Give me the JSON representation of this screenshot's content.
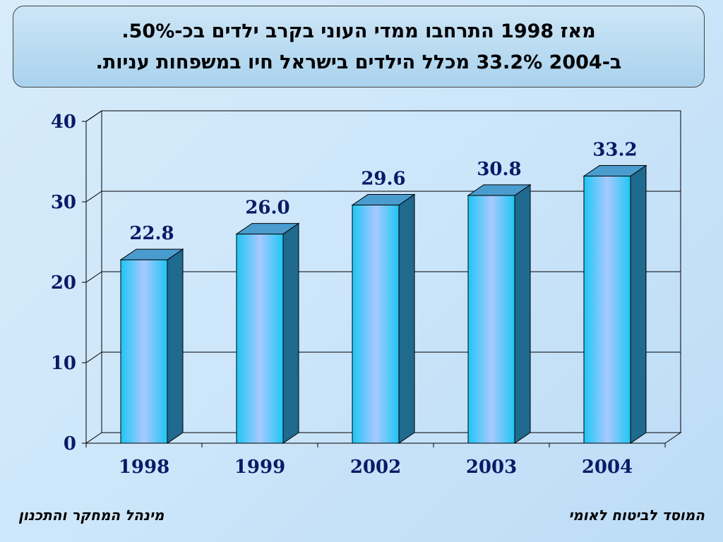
{
  "title": {
    "line1": "מאז 1998 התרחבו ממדי העוני בקרב ילדים בכ-50%.",
    "line2": "ב-2004 33.2% מכלל הילדים בישראל חיו במשפחות עניות."
  },
  "footer": {
    "left": "מינהל המחקר והתכנון",
    "right": "המוסד לביטוח לאומי"
  },
  "colors": {
    "bar_front_edge": "#1ec6f4",
    "bar_front_center": "#a8c9ff",
    "bar_side": "#1f6a8e",
    "bar_top": "#4a9ccf",
    "label": "#0a1a66"
  },
  "chart_data": {
    "type": "bar",
    "categories": [
      "1998",
      "1999",
      "2002",
      "2003",
      "2004"
    ],
    "values": [
      22.8,
      26.0,
      29.6,
      30.8,
      33.2
    ],
    "value_labels": [
      "22.8",
      "26.0",
      "29.6",
      "30.8",
      "33.2"
    ],
    "ylim": [
      0,
      40
    ],
    "yticks": [
      0,
      10,
      20,
      30,
      40
    ],
    "grid": true,
    "legend": "none",
    "style": "3d-column"
  }
}
